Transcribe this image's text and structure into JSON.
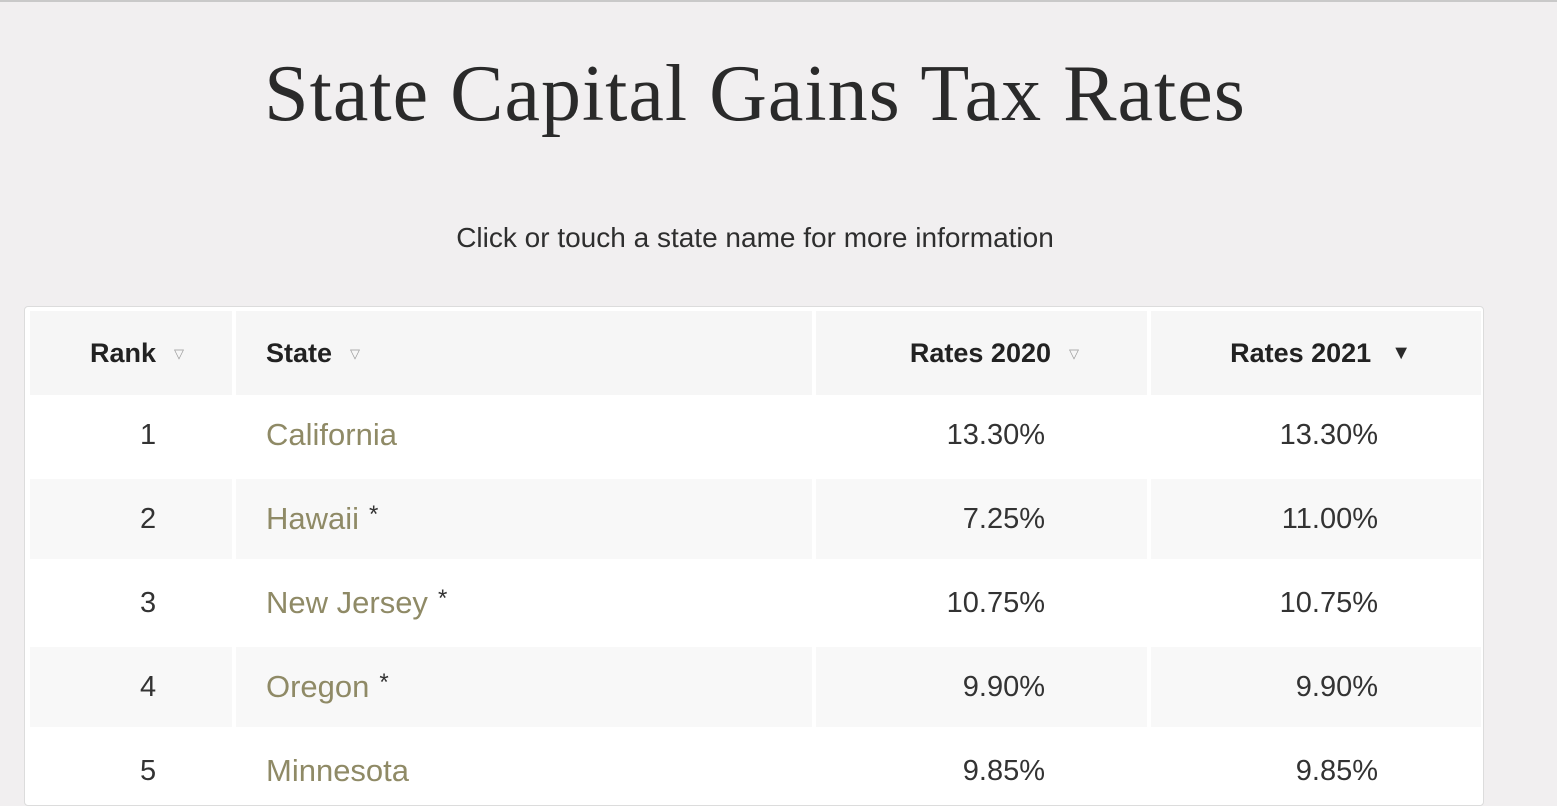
{
  "page": {
    "title": "State Capital Gains Tax Rates",
    "subtitle": "Click or touch a state name for more information"
  },
  "table": {
    "columns": [
      {
        "label": "Rank",
        "sort_icon": "sort-triangle-icon",
        "sort_glyph": "▽",
        "active": false
      },
      {
        "label": "State",
        "sort_icon": "sort-triangle-icon",
        "sort_glyph": "▽",
        "active": false
      },
      {
        "label": "Rates 2020",
        "sort_icon": "sort-triangle-icon",
        "sort_glyph": "▽",
        "active": false
      },
      {
        "label": "Rates 2021",
        "sort_icon": "sort-desc-icon",
        "sort_glyph": "▼",
        "active": true
      }
    ],
    "rows": [
      {
        "rank": "1",
        "state": "California",
        "asterisk": "",
        "rate_2020": "13.30%",
        "rate_2021": "13.30%"
      },
      {
        "rank": "2",
        "state": "Hawaii",
        "asterisk": "*",
        "rate_2020": "7.25%",
        "rate_2021": "11.00%"
      },
      {
        "rank": "3",
        "state": "New Jersey",
        "asterisk": "*",
        "rate_2020": "10.75%",
        "rate_2021": "10.75%"
      },
      {
        "rank": "4",
        "state": "Oregon",
        "asterisk": "*",
        "rate_2020": "9.90%",
        "rate_2021": "9.90%"
      },
      {
        "rank": "5",
        "state": "Minnesota",
        "asterisk": "",
        "rate_2020": "9.85%",
        "rate_2021": "9.85%"
      }
    ]
  },
  "colors": {
    "background": "#f1eff0",
    "state_link": "#8f8a66",
    "header_bg": "#f6f6f6",
    "text": "#333333"
  }
}
